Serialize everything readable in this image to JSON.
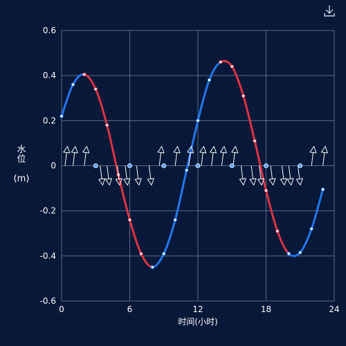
{
  "toolbar": {
    "download_icon": "download-icon"
  },
  "colors": {
    "background": "#081838",
    "grid": "#5a6a88",
    "axis_text": "#ffffff",
    "rising": "#2277ee",
    "falling": "#dd3344",
    "arrow": "#ffffff"
  },
  "chart_data": {
    "type": "line",
    "title": "",
    "xlabel": "时间(小时)",
    "ylabel_name": "水位",
    "ylabel_unit": "(m)",
    "xlim": [
      0,
      24
    ],
    "ylim": [
      -0.6,
      0.6
    ],
    "xticks": [
      0,
      6,
      12,
      18,
      24
    ],
    "yticks": [
      -0.6,
      -0.4,
      -0.2,
      0,
      0.2,
      0.4,
      0.6
    ],
    "grid": true,
    "water_level": {
      "x": [
        0,
        1,
        2,
        3,
        4,
        5,
        6,
        7,
        8,
        9,
        10,
        11,
        12,
        13,
        14,
        15,
        16,
        17,
        18,
        19,
        20,
        21,
        22,
        23
      ],
      "y": [
        0.22,
        0.36,
        0.405,
        0.34,
        0.18,
        -0.04,
        -0.24,
        -0.39,
        -0.45,
        -0.39,
        -0.24,
        -0.02,
        0.2,
        0.38,
        0.46,
        0.44,
        0.31,
        0.11,
        -0.11,
        -0.29,
        -0.39,
        -0.385,
        -0.28,
        -0.105
      ],
      "rising_color": "#2277ee",
      "falling_color": "#dd3344"
    },
    "zero_markers": {
      "x": [
        3,
        6,
        9,
        12,
        15,
        18,
        21
      ],
      "y": 0
    },
    "current_arrows": [
      {
        "x": 0.3,
        "dir": "up"
      },
      {
        "x": 1.0,
        "dir": "up"
      },
      {
        "x": 2.0,
        "dir": "up"
      },
      {
        "x": 3.4,
        "dir": "down"
      },
      {
        "x": 4.0,
        "dir": "down"
      },
      {
        "x": 4.9,
        "dir": "down"
      },
      {
        "x": 5.6,
        "dir": "down"
      },
      {
        "x": 6.6,
        "dir": "down"
      },
      {
        "x": 7.7,
        "dir": "down"
      },
      {
        "x": 8.6,
        "dir": "up"
      },
      {
        "x": 10.0,
        "dir": "up"
      },
      {
        "x": 11.2,
        "dir": "up"
      },
      {
        "x": 12.3,
        "dir": "up"
      },
      {
        "x": 13.2,
        "dir": "up"
      },
      {
        "x": 14.1,
        "dir": "up"
      },
      {
        "x": 15.1,
        "dir": "up"
      },
      {
        "x": 15.8,
        "dir": "down"
      },
      {
        "x": 16.7,
        "dir": "down"
      },
      {
        "x": 17.4,
        "dir": "down"
      },
      {
        "x": 18.4,
        "dir": "down"
      },
      {
        "x": 19.4,
        "dir": "down"
      },
      {
        "x": 20.0,
        "dir": "down"
      },
      {
        "x": 20.8,
        "dir": "down"
      },
      {
        "x": 22.0,
        "dir": "up"
      },
      {
        "x": 23.0,
        "dir": "up"
      }
    ]
  }
}
